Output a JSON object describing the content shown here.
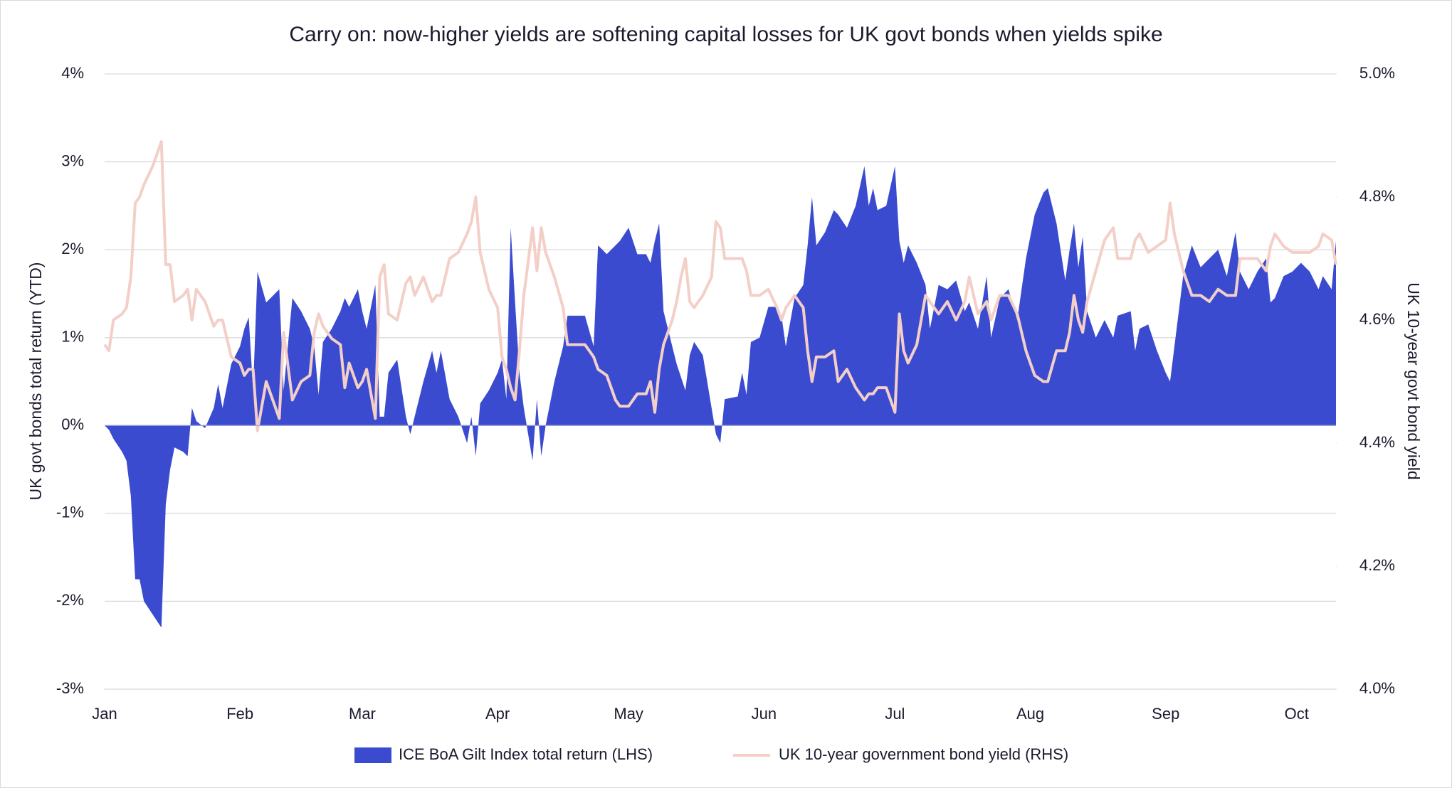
{
  "chart_data": {
    "type": "area-line",
    "title": "Carry on: now-higher yields are softening capital losses for UK govt bonds when yields spike",
    "y_label": "UK govt bonds total return (YTD)",
    "y2_label": "UK 10-year govt bond yield",
    "x": [
      0,
      1,
      2,
      4,
      5,
      6,
      7,
      8,
      9,
      11,
      13,
      14,
      15,
      16,
      18,
      19,
      20,
      21,
      23,
      25,
      26,
      27,
      29,
      31,
      32,
      33,
      34,
      35,
      37,
      39,
      40,
      41,
      43,
      45,
      47,
      48,
      49,
      50,
      52,
      54,
      55,
      56,
      58,
      59,
      60,
      62,
      63,
      64,
      65,
      67,
      69,
      70,
      71,
      73,
      75,
      76,
      77,
      79,
      81,
      83,
      84,
      85,
      86,
      88,
      90,
      91,
      92,
      93,
      94,
      95,
      96,
      98,
      99,
      100,
      101,
      103,
      105,
      106,
      108,
      110,
      112,
      113,
      115,
      117,
      118,
      120,
      122,
      124,
      125,
      126,
      127,
      128,
      130,
      131,
      132,
      133,
      134,
      135,
      137,
      139,
      140,
      141,
      142,
      145,
      146,
      147,
      148,
      150,
      152,
      154,
      155,
      156,
      158,
      160,
      161,
      162,
      163,
      165,
      167,
      168,
      170,
      172,
      174,
      175,
      176,
      177,
      179,
      181,
      182,
      183,
      184,
      186,
      188,
      189,
      191,
      193,
      195,
      197,
      198,
      200,
      202,
      203,
      205,
      207,
      209,
      211,
      213,
      215,
      216,
      218,
      220,
      221,
      222,
      223,
      224,
      225,
      227,
      229,
      231,
      232,
      235,
      236,
      237,
      239,
      241,
      243,
      244,
      245,
      247,
      249,
      251,
      253,
      255,
      257,
      259,
      260,
      262,
      264,
      266,
      267,
      268,
      270,
      272,
      274,
      276,
      278,
      279,
      281,
      282
    ],
    "xlim": [
      0,
      282
    ],
    "xticks": [
      {
        "value": 0,
        "label": "Jan"
      },
      {
        "value": 31,
        "label": "Feb"
      },
      {
        "value": 59,
        "label": "Mar"
      },
      {
        "value": 90,
        "label": "Apr"
      },
      {
        "value": 120,
        "label": "May"
      },
      {
        "value": 151,
        "label": "Jun"
      },
      {
        "value": 181,
        "label": "Jul"
      },
      {
        "value": 212,
        "label": "Aug"
      },
      {
        "value": 243,
        "label": "Sep"
      },
      {
        "value": 273,
        "label": "Oct"
      }
    ],
    "ylim": [
      -3,
      4
    ],
    "yticks": [
      {
        "value": -3,
        "label": "-3%"
      },
      {
        "value": -2,
        "label": "-2%"
      },
      {
        "value": -1,
        "label": "-1%"
      },
      {
        "value": 0,
        "label": "0%"
      },
      {
        "value": 1,
        "label": "1%"
      },
      {
        "value": 2,
        "label": "2%"
      },
      {
        "value": 3,
        "label": "3%"
      },
      {
        "value": 4,
        "label": "4%"
      }
    ],
    "y2lim": [
      4.0,
      5.0
    ],
    "y2ticks": [
      {
        "value": 4.0,
        "label": "4.0%"
      },
      {
        "value": 4.2,
        "label": "4.2%"
      },
      {
        "value": 4.4,
        "label": "4.4%"
      },
      {
        "value": 4.6,
        "label": "4.6%"
      },
      {
        "value": 4.8,
        "label": "4.8%"
      },
      {
        "value": 5.0,
        "label": "5.0%"
      }
    ],
    "grid": true,
    "legend": "bottom",
    "series": [
      {
        "name": "ICE BoA Gilt Index total return (LHS)",
        "kind": "area",
        "color": "#3a4bd0",
        "values": [
          0,
          -0.05,
          -0.15,
          -0.3,
          -0.4,
          -0.8,
          -1.75,
          -1.75,
          -2.0,
          -2.15,
          -2.3,
          -0.9,
          -0.5,
          -0.25,
          -0.3,
          -0.35,
          0.2,
          0.05,
          -0.03,
          0.2,
          0.47,
          0.2,
          0.7,
          0.9,
          1.1,
          1.23,
          0.4,
          1.75,
          1.4,
          1.5,
          1.55,
          0.4,
          1.45,
          1.3,
          1.1,
          0.9,
          0.35,
          0.95,
          1.1,
          1.3,
          1.45,
          1.35,
          1.55,
          1.3,
          1.1,
          1.6,
          0.1,
          0.1,
          0.6,
          0.75,
          0.1,
          -0.1,
          0.1,
          0.5,
          0.85,
          0.6,
          0.85,
          0.3,
          0.1,
          -0.2,
          0.1,
          -0.35,
          0.25,
          0.4,
          0.6,
          0.75,
          0.3,
          2.25,
          1.4,
          0.6,
          0.2,
          -0.4,
          0.3,
          -0.35,
          0,
          0.5,
          0.9,
          1.25,
          1.25,
          1.25,
          0.9,
          2.05,
          1.95,
          2.05,
          2.1,
          2.25,
          1.95,
          1.95,
          1.85,
          2.1,
          2.3,
          1.3,
          0.9,
          0.7,
          0.55,
          0.4,
          0.8,
          0.95,
          0.8,
          0.2,
          -0.1,
          -0.2,
          0.3,
          0.33,
          0.6,
          0.35,
          0.95,
          1.0,
          1.35,
          1.35,
          1.25,
          0.9,
          1.45,
          1.6,
          2.05,
          2.6,
          2.05,
          2.2,
          2.45,
          2.4,
          2.25,
          2.5,
          2.95,
          2.5,
          2.7,
          2.45,
          2.5,
          2.95,
          2.1,
          1.85,
          2.05,
          1.85,
          1.6,
          1.1,
          1.6,
          1.55,
          1.65,
          1.3,
          1.4,
          1.1,
          1.7,
          1.0,
          1.45,
          1.55,
          1.2,
          1.9,
          2.4,
          2.65,
          2.7,
          2.3,
          1.65,
          2.0,
          2.3,
          1.8,
          2.15,
          1.3,
          1.0,
          1.2,
          1.0,
          1.25,
          1.3,
          0.85,
          1.1,
          1.15,
          0.85,
          0.6,
          0.5,
          0.9,
          1.7,
          2.05,
          1.8,
          1.9,
          2.0,
          1.7,
          2.2,
          1.75,
          1.55,
          1.75,
          1.9,
          1.4,
          1.45,
          1.7,
          1.75,
          1.85,
          1.75,
          1.55,
          1.7,
          1.55,
          2.1
        ]
      },
      {
        "name": "UK 10-year government bond yield (RHS)",
        "kind": "line",
        "axis": "y2",
        "color": "#f3cfc8",
        "values": [
          4.56,
          4.55,
          4.6,
          4.61,
          4.62,
          4.67,
          4.79,
          4.8,
          4.82,
          4.85,
          4.89,
          4.69,
          4.69,
          4.63,
          4.64,
          4.65,
          4.6,
          4.65,
          4.63,
          4.59,
          4.6,
          4.6,
          4.54,
          4.53,
          4.51,
          4.52,
          4.52,
          4.42,
          4.5,
          4.46,
          4.44,
          4.58,
          4.47,
          4.5,
          4.51,
          4.58,
          4.61,
          4.59,
          4.57,
          4.56,
          4.49,
          4.53,
          4.49,
          4.5,
          4.52,
          4.44,
          4.67,
          4.69,
          4.61,
          4.6,
          4.66,
          4.67,
          4.64,
          4.67,
          4.63,
          4.64,
          4.64,
          4.7,
          4.71,
          4.74,
          4.76,
          4.8,
          4.71,
          4.65,
          4.62,
          4.54,
          4.52,
          4.49,
          4.47,
          4.55,
          4.64,
          4.75,
          4.68,
          4.75,
          4.71,
          4.67,
          4.62,
          4.56,
          4.56,
          4.56,
          4.54,
          4.52,
          4.51,
          4.47,
          4.46,
          4.46,
          4.48,
          4.48,
          4.5,
          4.45,
          4.52,
          4.56,
          4.6,
          4.63,
          4.67,
          4.7,
          4.63,
          4.62,
          4.64,
          4.67,
          4.76,
          4.75,
          4.7,
          4.7,
          4.7,
          4.68,
          4.64,
          4.64,
          4.65,
          4.62,
          4.6,
          4.62,
          4.64,
          4.62,
          4.55,
          4.5,
          4.54,
          4.54,
          4.55,
          4.5,
          4.52,
          4.49,
          4.47,
          4.48,
          4.48,
          4.49,
          4.49,
          4.45,
          4.61,
          4.55,
          4.53,
          4.56,
          4.64,
          4.63,
          4.61,
          4.63,
          4.6,
          4.63,
          4.67,
          4.61,
          4.63,
          4.6,
          4.64,
          4.64,
          4.61,
          4.55,
          4.51,
          4.5,
          4.5,
          4.55,
          4.55,
          4.58,
          4.64,
          4.6,
          4.58,
          4.63,
          4.68,
          4.73,
          4.75,
          4.7,
          4.7,
          4.73,
          4.74,
          4.71,
          4.72,
          4.73,
          4.79,
          4.74,
          4.68,
          4.64,
          4.64,
          4.63,
          4.65,
          4.64,
          4.64,
          4.7,
          4.7,
          4.7,
          4.68,
          4.72,
          4.74,
          4.72,
          4.71,
          4.71,
          4.71,
          4.72,
          4.74,
          4.73,
          4.69
        ]
      }
    ]
  }
}
